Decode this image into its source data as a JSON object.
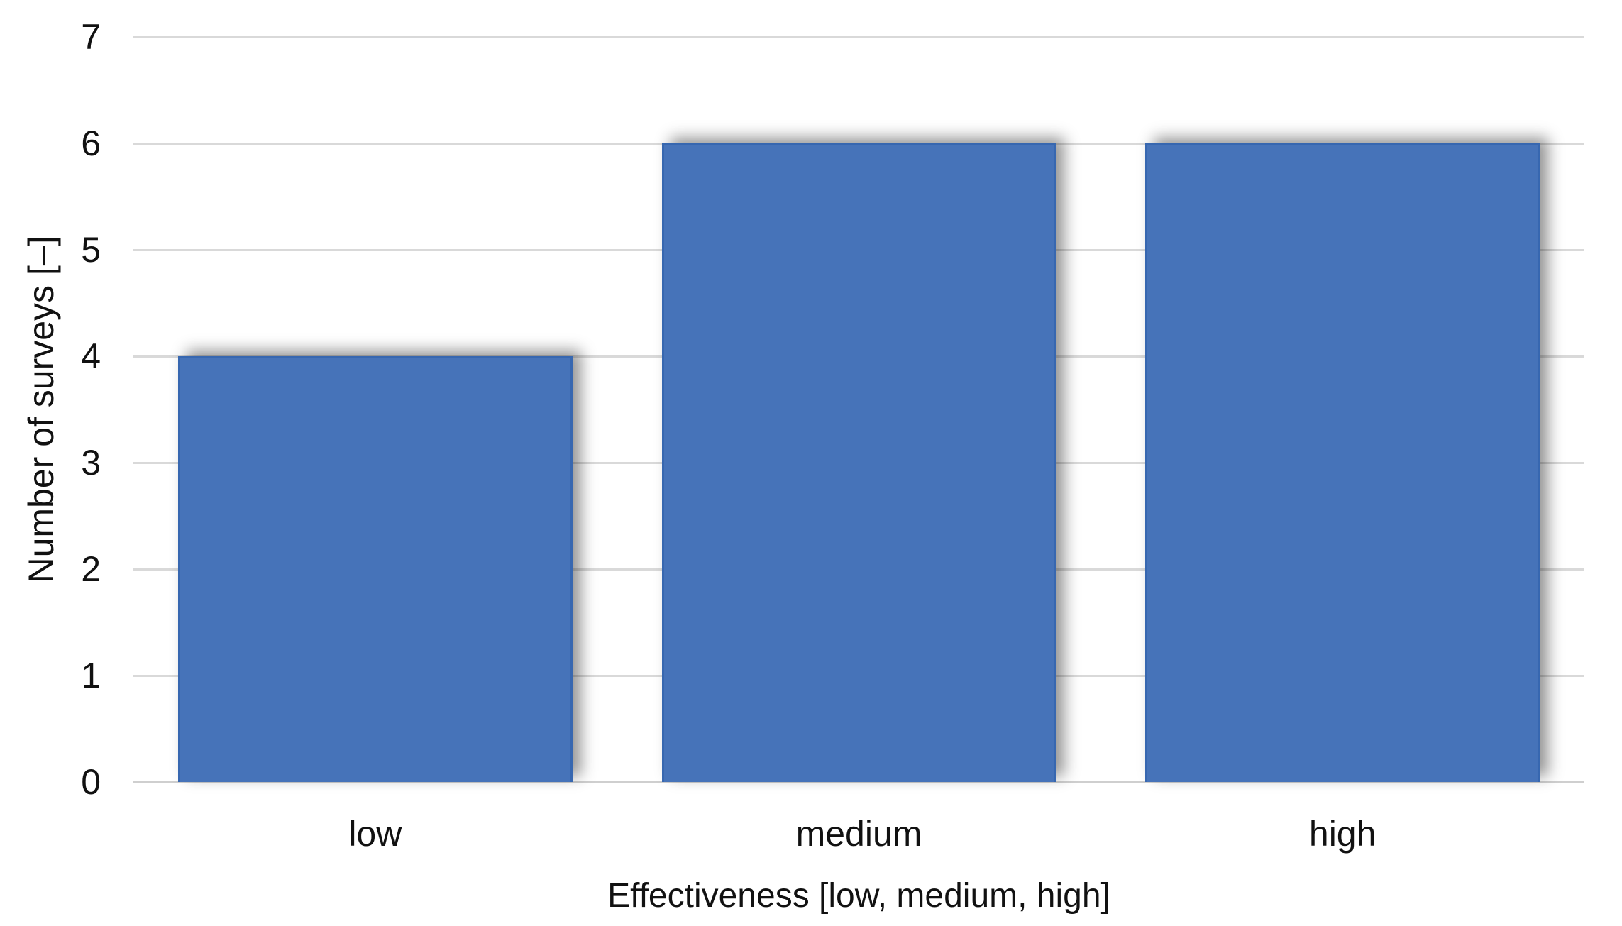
{
  "chart_data": {
    "type": "bar",
    "title": "",
    "categories": [
      "low",
      "medium",
      "high"
    ],
    "values": [
      4,
      6,
      6
    ],
    "series": [
      {
        "name": "Number of surveys",
        "values": [
          4,
          6,
          6
        ]
      }
    ],
    "xlabel": "Effectiveness [low, medium, high]",
    "ylabel": "Number of surveys [–]",
    "ylim": [
      0,
      7
    ],
    "yticks": [
      0,
      1,
      2,
      3,
      4,
      5,
      6,
      7
    ],
    "grid": "horizontal-gridlines-on",
    "legend": "none",
    "colors": {
      "bar_fill": "#4673B9",
      "bar_border": "#3767B0",
      "gridline": "#D9D9D9",
      "axis_line": "#CFCFCF",
      "text": "#111111",
      "background": "#FFFFFF"
    }
  }
}
